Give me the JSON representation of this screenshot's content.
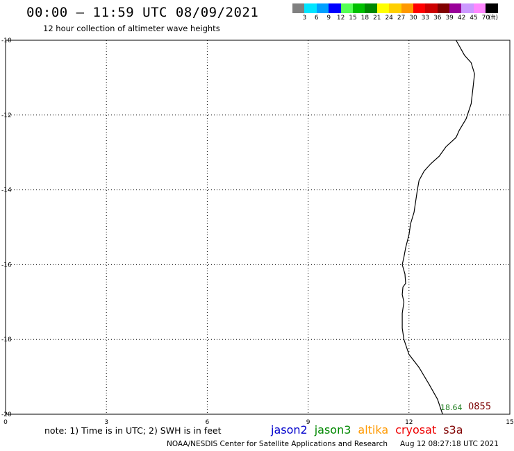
{
  "header": {
    "title": "00:00 – 11:59 UTC 08/09/2021",
    "subtitle": "12 hour collection of altimeter wave heights"
  },
  "legend": {
    "colors": [
      "#808080",
      "#00e5ff",
      "#00a0ff",
      "#0000ff",
      "#55ff55",
      "#00c000",
      "#008800",
      "#ffff00",
      "#ffd000",
      "#ff9900",
      "#ff0000",
      "#cc0000",
      "#800000",
      "#990099",
      "#cc99ff",
      "#ff88ff",
      "#000000"
    ],
    "labels": [
      "3",
      "6",
      "9",
      "12",
      "15",
      "18",
      "21",
      "24",
      "27",
      "30",
      "33",
      "36",
      "39",
      "42",
      "45",
      "70"
    ],
    "unit": "(ft)"
  },
  "map": {
    "lon_range": [
      0,
      15
    ],
    "lat_range": [
      -20,
      -10
    ],
    "x_ticks": [
      "0",
      "3",
      "6",
      "9",
      "12",
      "15"
    ],
    "y_ticks": [
      "-10",
      "-12",
      "-14",
      "-16",
      "-18",
      "-20"
    ],
    "grid": "dotted",
    "coastline": [
      [
        13.4,
        -10.0
      ],
      [
        13.65,
        -10.4
      ],
      [
        13.85,
        -10.6
      ],
      [
        13.95,
        -10.9
      ],
      [
        13.9,
        -11.3
      ],
      [
        13.85,
        -11.7
      ],
      [
        13.7,
        -12.1
      ],
      [
        13.5,
        -12.4
      ],
      [
        13.4,
        -12.6
      ],
      [
        13.1,
        -12.85
      ],
      [
        12.9,
        -13.1
      ],
      [
        12.65,
        -13.3
      ],
      [
        12.45,
        -13.5
      ],
      [
        12.3,
        -13.75
      ],
      [
        12.25,
        -14.0
      ],
      [
        12.2,
        -14.3
      ],
      [
        12.15,
        -14.6
      ],
      [
        12.05,
        -14.9
      ],
      [
        12.0,
        -15.2
      ],
      [
        11.9,
        -15.55
      ],
      [
        11.85,
        -15.8
      ],
      [
        11.8,
        -16.0
      ],
      [
        11.88,
        -16.25
      ],
      [
        11.9,
        -16.5
      ],
      [
        11.82,
        -16.6
      ],
      [
        11.8,
        -16.8
      ],
      [
        11.85,
        -17.0
      ],
      [
        11.8,
        -17.3
      ],
      [
        11.8,
        -17.7
      ],
      [
        11.85,
        -18.0
      ],
      [
        12.0,
        -18.4
      ],
      [
        12.3,
        -18.75
      ],
      [
        12.6,
        -19.2
      ],
      [
        12.85,
        -19.6
      ],
      [
        13.0,
        -20.0
      ]
    ]
  },
  "annotation": {
    "value": "18.64",
    "time": "0855"
  },
  "footer": {
    "note": "note: 1) Time is in UTC; 2) SWH is in feet",
    "satellites": [
      {
        "name": "jason2",
        "color": "#0000cc"
      },
      {
        "name": "jason3",
        "color": "#008800"
      },
      {
        "name": "altika",
        "color": "#ff9900"
      },
      {
        "name": "cryosat",
        "color": "#ee0000"
      },
      {
        "name": "s3a",
        "color": "#800000"
      }
    ],
    "credit": "NOAA/NESDIS Center for Satellite Applications and Research",
    "timestamp": "Aug 12 08:27:18 UTC 2021"
  }
}
